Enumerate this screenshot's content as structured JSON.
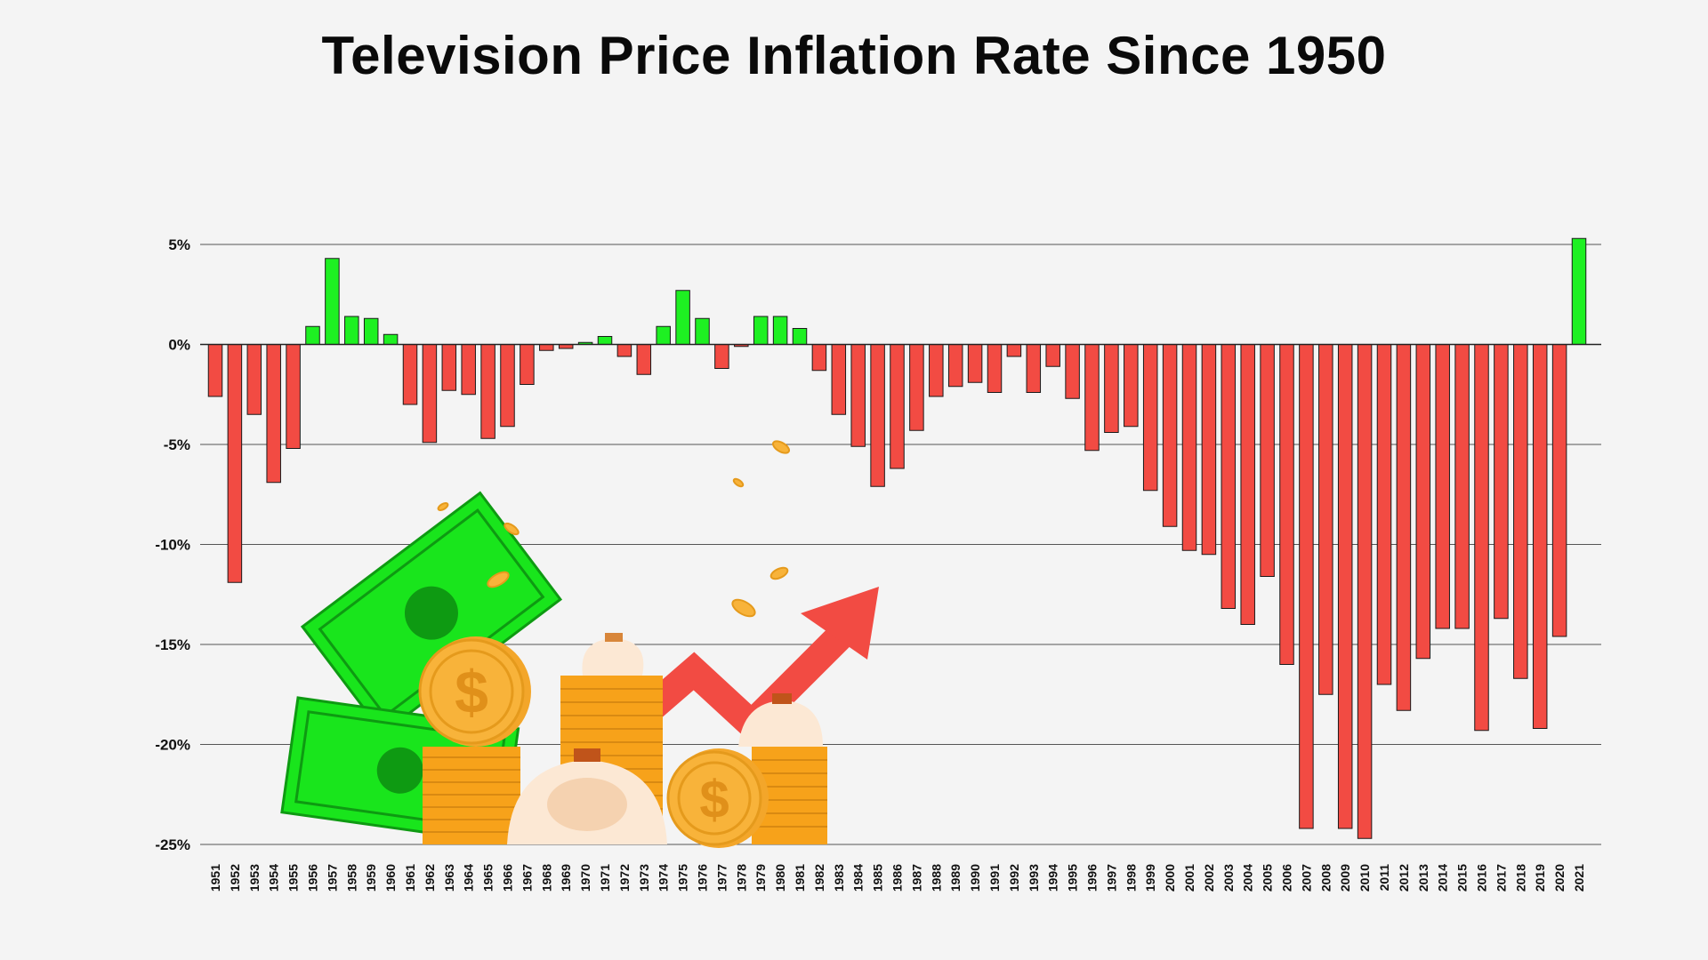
{
  "chart_data": {
    "type": "bar",
    "title": "Television Price Inflation Rate Since 1950",
    "xlabel": "",
    "ylabel": "",
    "ylim": [
      -25,
      5
    ],
    "yticks": [
      5,
      0,
      -5,
      -10,
      -15,
      -20,
      -25
    ],
    "ytick_labels": [
      "5%",
      "0%",
      "-5%",
      "-10%",
      "-15%",
      "-20%",
      "-25%"
    ],
    "grid": true,
    "positive_color": "#1ef022",
    "negative_color": "#f24b43",
    "categories": [
      "1951",
      "1952",
      "1953",
      "1954",
      "1955",
      "1956",
      "1957",
      "1958",
      "1959",
      "1960",
      "1961",
      "1962",
      "1963",
      "1964",
      "1965",
      "1966",
      "1967",
      "1968",
      "1969",
      "1970",
      "1971",
      "1972",
      "1973",
      "1974",
      "1975",
      "1976",
      "1977",
      "1978",
      "1979",
      "1980",
      "1981",
      "1982",
      "1983",
      "1984",
      "1985",
      "1986",
      "1987",
      "1988",
      "1989",
      "1990",
      "1991",
      "1992",
      "1993",
      "1994",
      "1995",
      "1996",
      "1997",
      "1998",
      "1999",
      "2000",
      "2001",
      "2002",
      "2003",
      "2004",
      "2005",
      "2006",
      "2007",
      "2008",
      "2009",
      "2010",
      "2011",
      "2012",
      "2013",
      "2014",
      "2015",
      "2016",
      "2017",
      "2018",
      "2019",
      "2020",
      "2021"
    ],
    "values": [
      -2.6,
      -11.9,
      -3.5,
      -6.9,
      -5.2,
      0.9,
      4.3,
      1.4,
      1.3,
      0.5,
      -3.0,
      -4.9,
      -2.3,
      -2.5,
      -4.7,
      -4.1,
      -2.0,
      -0.3,
      -0.2,
      0.1,
      0.4,
      -0.6,
      -1.5,
      0.9,
      2.7,
      1.3,
      -1.2,
      -0.1,
      1.4,
      1.4,
      0.8,
      -1.3,
      -3.5,
      -5.1,
      -7.1,
      -6.2,
      -4.3,
      -2.6,
      -2.1,
      -1.9,
      -2.4,
      -0.6,
      -2.4,
      -1.1,
      -2.7,
      -5.3,
      -4.4,
      -4.1,
      -7.3,
      -9.1,
      -10.3,
      -10.5,
      -13.2,
      -14.0,
      -11.6,
      -16.0,
      -24.2,
      -17.5,
      -24.2,
      -24.7,
      -17.0,
      -18.3,
      -15.7,
      -14.2,
      -14.2,
      -19.3,
      -13.7,
      -16.7,
      -19.2,
      -14.6,
      5.3
    ]
  }
}
